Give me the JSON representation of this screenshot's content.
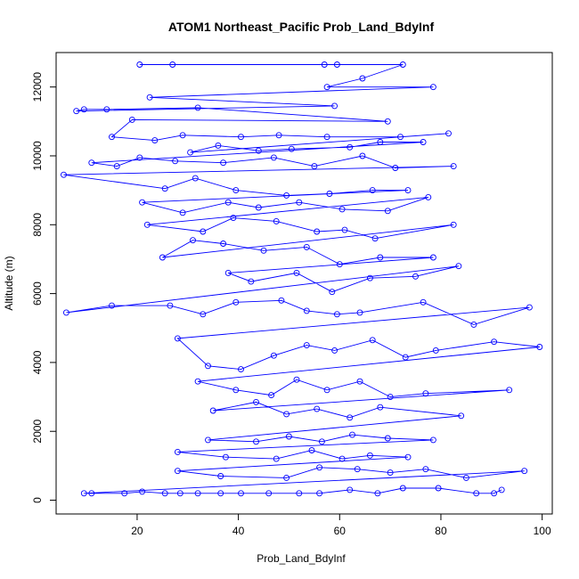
{
  "chart_data": {
    "type": "line",
    "title": "ATOM1 Northeast_Pacific Prob_Land_BdyInf",
    "xlabel": "Prob_Land_BdyInf",
    "ylabel": "Altitude (m)",
    "xlim": [
      4,
      102
    ],
    "ylim": [
      -400,
      13000
    ],
    "xticks": [
      20,
      40,
      60,
      80,
      100
    ],
    "yticks": [
      0,
      2000,
      4000,
      6000,
      8000,
      10000,
      12000
    ],
    "grid": false,
    "legend": "none",
    "markers": "open-circle",
    "color": "#0000ff",
    "series": [
      {
        "values": [
          [
            20.5,
            12650
          ],
          [
            27,
            12650
          ],
          [
            57,
            12650
          ],
          [
            59.5,
            12650
          ],
          [
            72.5,
            12650
          ],
          [
            64.5,
            12250
          ],
          [
            57.5,
            12000
          ],
          [
            78.5,
            12000
          ],
          [
            22.5,
            11700
          ],
          [
            59,
            11450
          ],
          [
            8,
            11300
          ],
          [
            9.5,
            11350
          ],
          [
            14,
            11350
          ],
          [
            32,
            11400
          ],
          [
            69.5,
            11000
          ],
          [
            19,
            11050
          ],
          [
            15,
            10550
          ],
          [
            23.5,
            10450
          ],
          [
            29,
            10600
          ],
          [
            40.5,
            10550
          ],
          [
            48,
            10600
          ],
          [
            57.5,
            10550
          ],
          [
            72,
            10550
          ],
          [
            81.5,
            10650
          ],
          [
            30.5,
            10100
          ],
          [
            36,
            10300
          ],
          [
            44,
            10150
          ],
          [
            50.5,
            10200
          ],
          [
            62,
            10250
          ],
          [
            68,
            10400
          ],
          [
            76.5,
            10400
          ],
          [
            11,
            9800
          ],
          [
            16,
            9700
          ],
          [
            20.5,
            9950
          ],
          [
            27.5,
            9850
          ],
          [
            37,
            9800
          ],
          [
            47,
            9950
          ],
          [
            55,
            9700
          ],
          [
            64.5,
            10000
          ],
          [
            71,
            9650
          ],
          [
            82.5,
            9700
          ],
          [
            5.5,
            9450
          ],
          [
            25.5,
            9050
          ],
          [
            31.5,
            9350
          ],
          [
            39.5,
            9000
          ],
          [
            49.5,
            8850
          ],
          [
            58,
            8900
          ],
          [
            66.5,
            9000
          ],
          [
            73.5,
            9000
          ],
          [
            21,
            8650
          ],
          [
            29,
            8350
          ],
          [
            38,
            8650
          ],
          [
            44,
            8500
          ],
          [
            52,
            8650
          ],
          [
            60.5,
            8450
          ],
          [
            69.5,
            8400
          ],
          [
            77.5,
            8800
          ],
          [
            22,
            8000
          ],
          [
            33,
            7800
          ],
          [
            39,
            8200
          ],
          [
            47.5,
            8100
          ],
          [
            55.5,
            7800
          ],
          [
            61,
            7850
          ],
          [
            67,
            7600
          ],
          [
            82.5,
            8000
          ],
          [
            25,
            7050
          ],
          [
            31,
            7550
          ],
          [
            37,
            7450
          ],
          [
            45,
            7250
          ],
          [
            53.5,
            7350
          ],
          [
            60,
            6850
          ],
          [
            68,
            7050
          ],
          [
            78.5,
            7050
          ],
          [
            38,
            6600
          ],
          [
            42.5,
            6350
          ],
          [
            51.5,
            6600
          ],
          [
            58.5,
            6050
          ],
          [
            66,
            6450
          ],
          [
            75,
            6500
          ],
          [
            83.5,
            6800
          ],
          [
            6,
            5450
          ],
          [
            15,
            5650
          ],
          [
            26.5,
            5650
          ],
          [
            33,
            5400
          ],
          [
            39.5,
            5750
          ],
          [
            48.5,
            5800
          ],
          [
            53.5,
            5500
          ],
          [
            59.5,
            5400
          ],
          [
            64,
            5450
          ],
          [
            76.5,
            5750
          ],
          [
            86.5,
            5100
          ],
          [
            97.5,
            5600
          ],
          [
            28,
            4700
          ],
          [
            34,
            3900
          ],
          [
            40.5,
            3800
          ],
          [
            47,
            4200
          ],
          [
            53.5,
            4500
          ],
          [
            59,
            4350
          ],
          [
            66.5,
            4650
          ],
          [
            73,
            4150
          ],
          [
            79,
            4350
          ],
          [
            90.5,
            4600
          ],
          [
            99.5,
            4450
          ],
          [
            32,
            3450
          ],
          [
            39.5,
            3200
          ],
          [
            46.5,
            3050
          ],
          [
            51.5,
            3500
          ],
          [
            57.5,
            3200
          ],
          [
            64,
            3450
          ],
          [
            70,
            3000
          ],
          [
            77,
            3100
          ],
          [
            93.5,
            3200
          ],
          [
            35,
            2600
          ],
          [
            43.5,
            2850
          ],
          [
            49.5,
            2500
          ],
          [
            55.5,
            2650
          ],
          [
            62,
            2400
          ],
          [
            68,
            2700
          ],
          [
            84,
            2450
          ],
          [
            34,
            1750
          ],
          [
            43.5,
            1700
          ],
          [
            50,
            1850
          ],
          [
            56.5,
            1700
          ],
          [
            62.5,
            1900
          ],
          [
            69.5,
            1800
          ],
          [
            78.5,
            1750
          ],
          [
            28,
            1400
          ],
          [
            37.5,
            1250
          ],
          [
            47.5,
            1200
          ],
          [
            54.5,
            1450
          ],
          [
            60.5,
            1200
          ],
          [
            66,
            1300
          ],
          [
            73.5,
            1250
          ],
          [
            28,
            850
          ],
          [
            36.5,
            700
          ],
          [
            49.5,
            650
          ],
          [
            56,
            950
          ],
          [
            63.5,
            900
          ],
          [
            70,
            800
          ],
          [
            77,
            900
          ],
          [
            85,
            650
          ],
          [
            96.5,
            850
          ],
          [
            9.5,
            200
          ],
          [
            11,
            200
          ],
          [
            17.5,
            200
          ],
          [
            21,
            250
          ],
          [
            25.5,
            200
          ],
          [
            28.5,
            200
          ],
          [
            32,
            200
          ],
          [
            36.5,
            200
          ],
          [
            40.5,
            200
          ],
          [
            46,
            200
          ],
          [
            52,
            200
          ],
          [
            56,
            200
          ],
          [
            62,
            300
          ],
          [
            67.5,
            200
          ],
          [
            72.5,
            350
          ],
          [
            79.5,
            350
          ],
          [
            87,
            200
          ],
          [
            90.5,
            200
          ],
          [
            92,
            300
          ]
        ]
      }
    ]
  }
}
